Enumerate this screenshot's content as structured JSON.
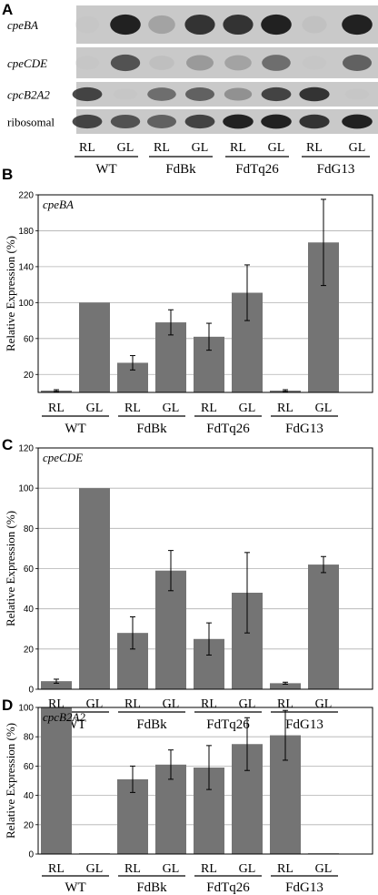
{
  "panels": {
    "a": {
      "letter": "A",
      "rows": [
        {
          "label": "cpeBA",
          "italic": true
        },
        {
          "label": "cpeCDE",
          "italic": true
        },
        {
          "label": "cpcB2A2",
          "italic": true
        },
        {
          "label": "ribosomal",
          "italic": false
        }
      ],
      "conditions": [
        "RL",
        "GL"
      ],
      "strains": [
        "WT",
        "FdBk",
        "FdTq26",
        "FdG13"
      ],
      "band_intensity": [
        [
          0.05,
          0.95,
          0.45,
          0.9,
          0.9,
          0.95,
          0.15,
          0.95
        ],
        [
          0.05,
          0.8,
          0.2,
          0.5,
          0.45,
          0.7,
          0.05,
          0.75
        ],
        [
          0.85,
          0.05,
          0.7,
          0.75,
          0.55,
          0.85,
          0.9,
          0.05
        ],
        [
          0.85,
          0.8,
          0.75,
          0.85,
          0.95,
          0.95,
          0.9,
          0.95
        ]
      ]
    },
    "b": {
      "letter": "B"
    },
    "c": {
      "letter": "C"
    },
    "d": {
      "letter": "D"
    }
  },
  "chart_data": [
    {
      "type": "bar",
      "panel": "B",
      "title": "cpeBA",
      "ylabel": "Relative Expression (%)",
      "ylim": [
        0,
        220
      ],
      "yticks": [
        20,
        60,
        100,
        140,
        180,
        220
      ],
      "grid": true,
      "categories": [
        "RL",
        "GL",
        "RL",
        "GL",
        "RL",
        "GL",
        "RL",
        "GL"
      ],
      "groups": [
        "WT",
        "FdBk",
        "FdTq26",
        "FdG13"
      ],
      "values": [
        2,
        100,
        33,
        78,
        62,
        111,
        2,
        167
      ],
      "errors": [
        1,
        0,
        8,
        14,
        15,
        31,
        1,
        48
      ],
      "bar_color": "#747474"
    },
    {
      "type": "bar",
      "panel": "C",
      "title": "cpeCDE",
      "ylabel": "Relative Expression (%)",
      "ylim": [
        0,
        120
      ],
      "yticks": [
        0,
        20,
        40,
        60,
        80,
        100,
        120
      ],
      "grid": true,
      "categories": [
        "RL",
        "GL",
        "RL",
        "GL",
        "RL",
        "GL",
        "RL",
        "GL"
      ],
      "groups": [
        "WT",
        "FdBk",
        "FdTq26",
        "FdG13"
      ],
      "values": [
        4,
        100,
        28,
        59,
        25,
        48,
        3,
        62
      ],
      "errors": [
        1,
        0,
        8,
        10,
        8,
        20,
        0.5,
        4
      ],
      "bar_color": "#747474"
    },
    {
      "type": "bar",
      "panel": "D",
      "title": "cpcB2A2",
      "ylabel": "Relative Expression (%)",
      "ylim": [
        0,
        100
      ],
      "yticks": [
        0,
        20,
        40,
        60,
        80,
        100
      ],
      "grid": true,
      "categories": [
        "RL",
        "GL",
        "RL",
        "GL",
        "RL",
        "GL",
        "RL",
        "GL"
      ],
      "groups": [
        "WT",
        "FdBk",
        "FdTq26",
        "FdG13"
      ],
      "values": [
        100,
        0.5,
        51,
        61,
        59,
        75,
        81,
        0.5
      ],
      "errors": [
        0,
        0,
        9,
        10,
        15,
        18,
        17,
        0
      ],
      "bar_color": "#747474"
    }
  ]
}
